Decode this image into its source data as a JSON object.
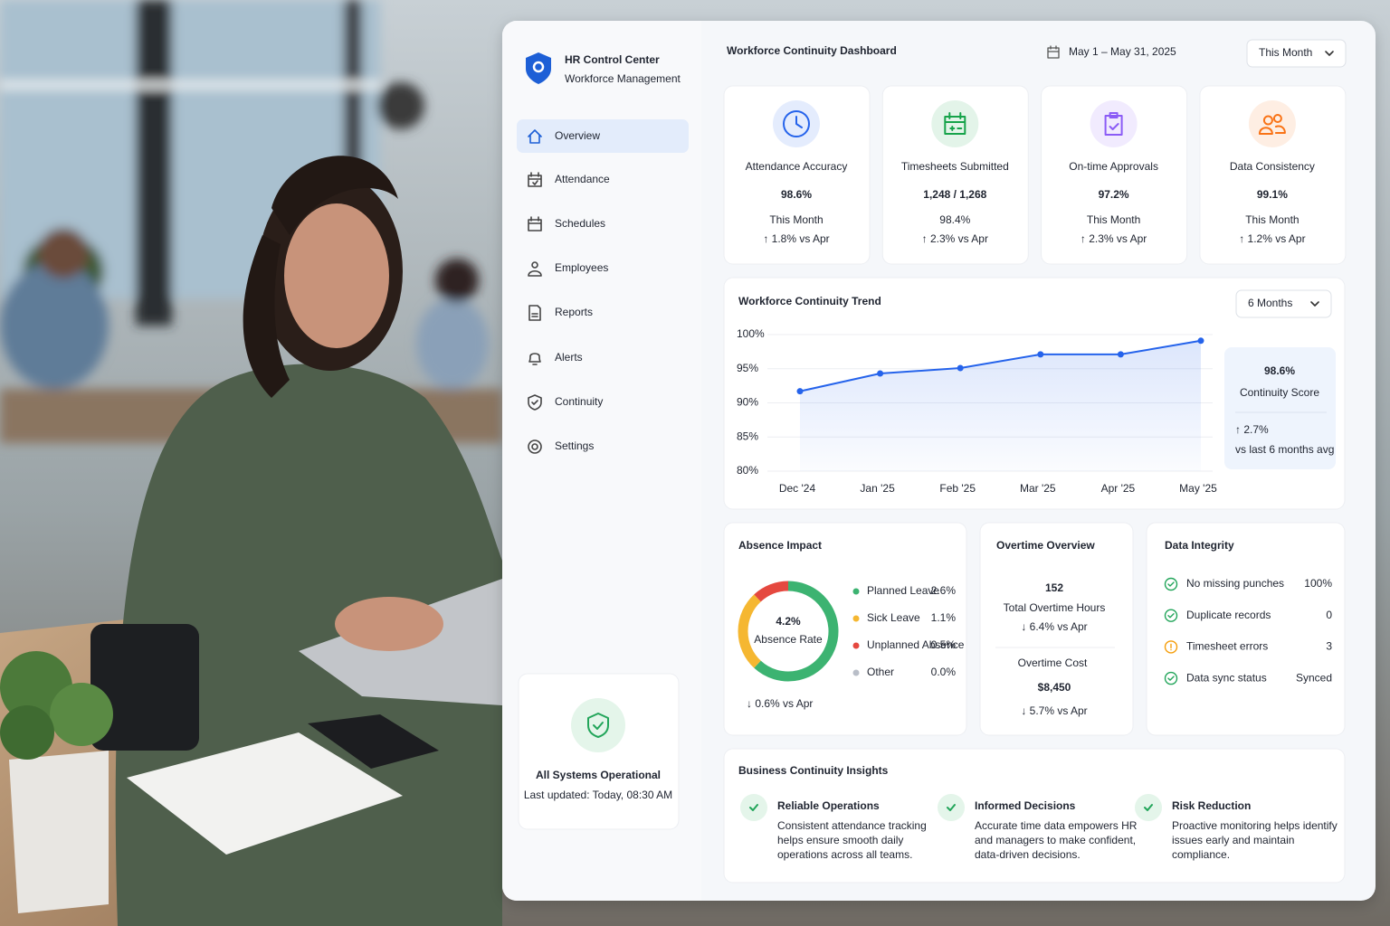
{
  "sidebar": {
    "brand": "HR Control Center",
    "subtitle": "Workforce Management",
    "nav": [
      "Overview",
      "Attendance",
      "Schedules",
      "Employees",
      "Reports",
      "Alerts",
      "Continuity",
      "Settings"
    ],
    "status": {
      "title": "All Systems Operational",
      "updated": "Last updated: Today, 08:30 AM"
    }
  },
  "header": {
    "title": "Workforce Continuity Dashboard",
    "date_range": "May 1 – May 31, 2025",
    "period": "This Month"
  },
  "kpis": [
    {
      "label": "Attendance Accuracy",
      "value": "98.6%",
      "sub": "This Month",
      "change": "↑ 1.8% vs Apr",
      "color": "#2563eb"
    },
    {
      "label": "Timesheets Submitted",
      "value": "1,248 / 1,268",
      "sub": "98.4%",
      "sub_color": "#16a34a",
      "change": "↑ 2.3% vs Apr",
      "color": "#16a34a"
    },
    {
      "label": "On-time Approvals",
      "value": "97.2%",
      "sub": "This Month",
      "change": "↑ 2.3% vs Apr",
      "color": "#8b5cf6"
    },
    {
      "label": "Data Consistency",
      "value": "99.1%",
      "sub": "This Month",
      "change": "↑ 1.2% vs Apr",
      "color": "#f97316"
    }
  ],
  "chart_data": [
    {
      "type": "line",
      "title": "Workforce Continuity Trend",
      "period": "6 Months",
      "categories": [
        "Dec '24",
        "Jan '25",
        "Feb '25",
        "Mar '25",
        "Apr '25",
        "May '25"
      ],
      "values": [
        91.7,
        94.3,
        95.1,
        97.1,
        97.1,
        99.1
      ],
      "color": "#2563eb",
      "ylim": [
        80,
        100
      ],
      "yticks": [
        {
          "value": 80,
          "label": "80%"
        },
        {
          "value": 85,
          "label": "85%"
        },
        {
          "value": 90,
          "label": "90%"
        },
        {
          "value": 95,
          "label": "95%"
        },
        {
          "value": 100,
          "label": "100%"
        }
      ],
      "grid": true,
      "summary": {
        "value": "98.6%",
        "label": "Continuity Score",
        "change": "↑ 2.7%",
        "note": "vs last 6 months avg"
      }
    },
    {
      "type": "pie",
      "title": "Absence Impact",
      "categories": [
        "Planned Leave",
        "Sick Leave",
        "Unplanned Absence",
        "Other"
      ],
      "values": [
        2.6,
        1.1,
        0.5,
        0.0
      ],
      "value_labels": [
        "2.6%",
        "1.1%",
        "0.5%",
        "0.0%"
      ],
      "colors": [
        "#3cb371",
        "#f5b731",
        "#e5483f",
        "#b9bec8"
      ],
      "center_value": "4.2%",
      "center_label": "Absence Rate",
      "change": "↓ 0.6% vs Apr"
    }
  ],
  "overtime": {
    "title": "Overtime Overview",
    "hours": "152",
    "hours_label": "Total Overtime Hours",
    "hours_change": "↓ 6.4% vs Apr",
    "cost_label": "Overtime Cost",
    "cost": "$8,450",
    "cost_change": "↓ 5.7% vs Apr"
  },
  "integrity": {
    "title": "Data Integrity",
    "items": [
      {
        "label": "No missing punches",
        "value": "100%",
        "color": "#22a55a",
        "value_color": "#22a55a"
      },
      {
        "label": "Duplicate records",
        "value": "0",
        "color": "#22a55a",
        "value_color": "#444"
      },
      {
        "label": "Timesheet errors",
        "value": "3",
        "color": "#f59e0b",
        "value_color": "#444"
      },
      {
        "label": "Data sync status",
        "value": "Synced",
        "color": "#22a55a",
        "value_color": "#22a55a"
      }
    ]
  },
  "insights": {
    "title": "Business Continuity Insights",
    "items": [
      {
        "title": "Reliable Operations",
        "lines": [
          "Consistent attendance tracking",
          "helps ensure smooth daily",
          "operations across all teams."
        ]
      },
      {
        "title": "Informed Decisions",
        "lines": [
          "Accurate time data empowers HR",
          "and managers to make confident,",
          "data-driven decisions."
        ]
      },
      {
        "title": "Risk Reduction",
        "lines": [
          "Proactive monitoring helps identify",
          "issues early and maintain",
          "compliance."
        ]
      }
    ]
  }
}
